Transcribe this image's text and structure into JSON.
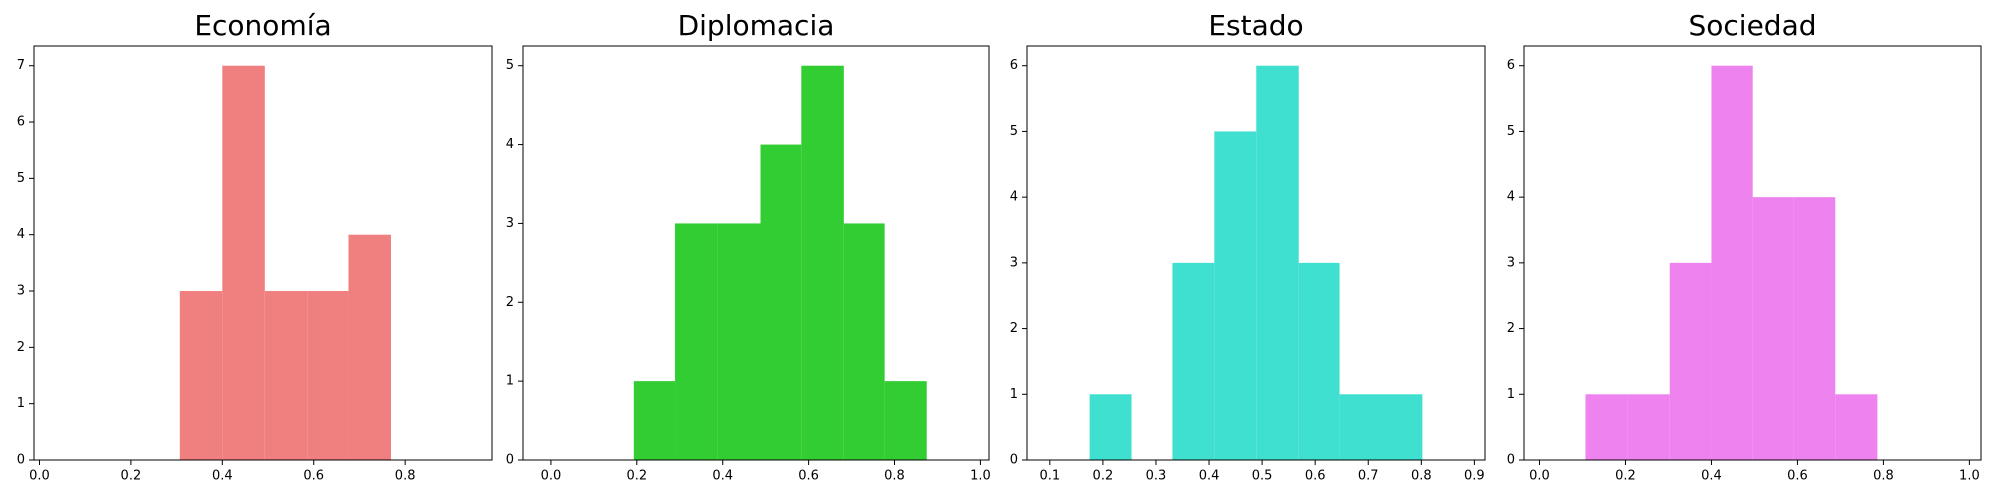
{
  "chart_data": [
    {
      "type": "histogram",
      "title": "Economía",
      "color": "#f08080",
      "bins": [
        0.307,
        0.4,
        0.493,
        0.586,
        0.676,
        0.769
      ],
      "counts": [
        3,
        7,
        3,
        3,
        4
      ],
      "xlim": [
        -0.012,
        0.99
      ],
      "ylim": [
        0,
        7.35
      ],
      "xticks": [
        {
          "value": 0,
          "label": "0.0"
        },
        0.2,
        0.4,
        0.6,
        0.8
      ],
      "yticks": [
        0,
        1,
        2,
        3,
        4,
        5,
        6,
        7
      ]
    },
    {
      "type": "histogram",
      "title": "Diplomacia",
      "color": "#32cd32",
      "bins": [
        0.193,
        0.289,
        0.387,
        0.488,
        0.583,
        0.682,
        0.777,
        0.875
      ],
      "counts": [
        1,
        3,
        3,
        4,
        5,
        3,
        1
      ],
      "xlim": [
        -0.065,
        1.02
      ],
      "ylim": [
        0,
        5.25
      ],
      "xticks": [
        {
          "value": 0,
          "label": "0.0"
        },
        0.2,
        0.4,
        0.6,
        0.8,
        {
          "value": 1,
          "label": "1.0"
        }
      ],
      "yticks": [
        0,
        1,
        2,
        3,
        4,
        5
      ]
    },
    {
      "type": "histogram",
      "title": "Estado",
      "color": "#40e0d0",
      "bins": [
        0.175,
        0.254,
        0.331,
        0.41,
        0.489,
        0.569,
        0.646,
        0.725,
        0.802
      ],
      "counts": [
        1,
        0,
        3,
        5,
        6,
        3,
        1,
        1
      ],
      "xlim": [
        0.057,
        0.92
      ],
      "ylim": [
        0,
        6.3
      ],
      "xticks": [
        0.1,
        0.2,
        0.3,
        0.4,
        0.5,
        0.6,
        0.7,
        0.8,
        0.9
      ],
      "yticks": [
        0,
        1,
        2,
        3,
        4,
        5,
        6
      ]
    },
    {
      "type": "histogram",
      "title": "Sociedad",
      "color": "#ee82ee",
      "bins": [
        0.107,
        0.205,
        0.303,
        0.4,
        0.496,
        0.59,
        0.688,
        0.786
      ],
      "counts": [
        1,
        1,
        3,
        6,
        4,
        4,
        1
      ],
      "xlim": [
        -0.036,
        1.027
      ],
      "ylim": [
        0,
        6.3
      ],
      "xticks": [
        {
          "value": 0,
          "label": "0.0"
        },
        0.2,
        0.4,
        0.6,
        0.8,
        {
          "value": 1,
          "label": "1.0"
        }
      ],
      "yticks": [
        0,
        1,
        2,
        3,
        4,
        5,
        6
      ]
    }
  ]
}
